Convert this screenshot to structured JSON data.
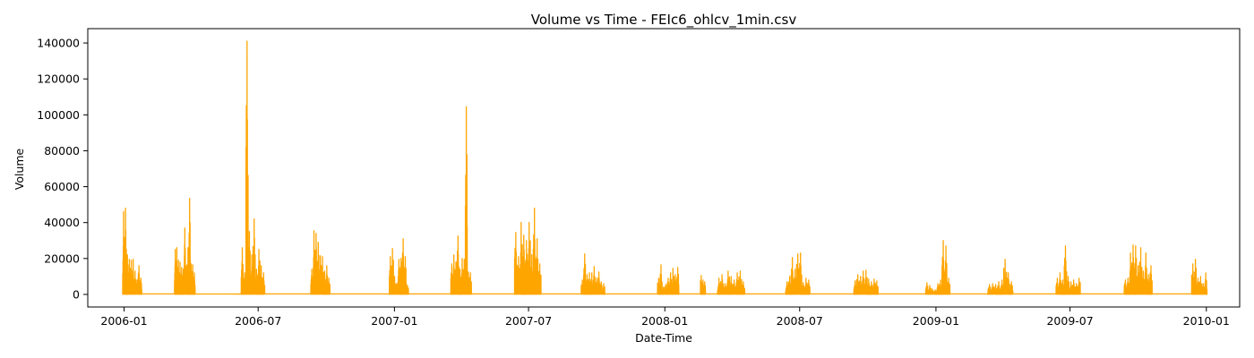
{
  "chart_data": {
    "type": "line",
    "title": "Volume vs Time - FEIc6_ohlcv_1min.csv",
    "xlabel": "Date-Time",
    "ylabel": "Volume",
    "color": "#ffa500",
    "xlim": [
      "2005-11-13",
      "2010-02-15"
    ],
    "ylim": [
      -7000,
      148000
    ],
    "x_ticks": [
      "2006-01",
      "2006-07",
      "2007-01",
      "2007-07",
      "2008-01",
      "2008-07",
      "2009-01",
      "2009-07",
      "2010-01"
    ],
    "y_ticks": [
      0,
      20000,
      40000,
      60000,
      80000,
      100000,
      120000,
      140000
    ],
    "grid": false,
    "series": [
      {
        "clusters": [
          {
            "start": "2005-12-30",
            "end": "2006-01-25",
            "peaks": [
              46000,
              48000,
              22000,
              19500,
              19000,
              19500,
              13000,
              8000,
              16000,
              9000
            ]
          },
          {
            "start": "2006-03-10",
            "end": "2006-04-07",
            "peaks": [
              25000,
              26000,
              19000,
              18000,
              15000,
              14000,
              37000,
              16000,
              26000,
              53500,
              17000,
              16500,
              12000
            ]
          },
          {
            "start": "2006-06-08",
            "end": "2006-07-10",
            "peaks": [
              26000,
              12000,
              141000,
              35000,
              22000,
              42000,
              14000,
              25000,
              16000,
              12000
            ]
          },
          {
            "start": "2006-09-10",
            "end": "2006-10-06",
            "peaks": [
              14000,
              35500,
              34000,
              29000,
              21500,
              21000,
              13000,
              16000,
              9000
            ]
          },
          {
            "start": "2006-12-25",
            "end": "2007-01-20",
            "peaks": [
              21000,
              25500,
              10000,
              6000,
              19500,
              20000,
              31000,
              21000,
              5000
            ]
          },
          {
            "start": "2007-03-18",
            "end": "2007-04-15",
            "peaks": [
              17000,
              22000,
              18000,
              32500,
              14000,
              20000,
              19500,
              104500,
              12500,
              12000
            ]
          },
          {
            "start": "2007-06-12",
            "end": "2007-07-18",
            "peaks": [
              34500,
              21000,
              40000,
              33000,
              30000,
              40000,
              22000,
              48000,
              31000,
              17000
            ]
          },
          {
            "start": "2007-09-10",
            "end": "2007-10-12",
            "peaks": [
              8000,
              22500,
              11000,
              12000,
              12000,
              15500,
              9000,
              12500,
              7000,
              6000
            ]
          },
          {
            "start": "2007-12-22",
            "end": "2008-01-20",
            "peaks": [
              9000,
              16500,
              4000,
              5500,
              9000,
              12000,
              14500,
              11000,
              15000
            ]
          },
          {
            "start": "2008-02-18",
            "end": "2008-02-25",
            "peaks": [
              10500,
              8000,
              7000
            ]
          },
          {
            "start": "2008-03-12",
            "end": "2008-04-18",
            "peaks": [
              9000,
              11000,
              6000,
              13000,
              10000,
              8000,
              12000,
              13000,
              7000
            ]
          },
          {
            "start": "2008-06-12",
            "end": "2008-07-15",
            "peaks": [
              7000,
              10000,
              20500,
              14000,
              22500,
              23000,
              6500,
              9000,
              8000
            ]
          },
          {
            "start": "2008-09-12",
            "end": "2008-10-15",
            "peaks": [
              7500,
              11000,
              10000,
              13000,
              13500,
              8500,
              7000,
              8500,
              7500
            ]
          },
          {
            "start": "2008-12-18",
            "end": "2009-01-20",
            "peaks": [
              6500,
              5000,
              3000,
              2500,
              6000,
              8000,
              30000,
              27000,
              9000
            ]
          },
          {
            "start": "2009-03-12",
            "end": "2009-04-15",
            "peaks": [
              5500,
              6000,
              5500,
              7000,
              8000,
              19500,
              12000,
              7000
            ]
          },
          {
            "start": "2009-06-12",
            "end": "2009-07-15",
            "peaks": [
              9000,
              12000,
              8000,
              27000,
              10000,
              7000,
              8000,
              6000,
              9000
            ]
          },
          {
            "start": "2009-09-12",
            "end": "2009-10-20",
            "peaks": [
              8000,
              9000,
              23000,
              27500,
              27000,
              16000,
              26000,
              13000,
              23000,
              11000,
              16000
            ]
          },
          {
            "start": "2009-12-12",
            "end": "2010-01-02",
            "peaks": [
              17000,
              19500,
              9000,
              10000,
              6000,
              12000
            ]
          }
        ]
      }
    ]
  }
}
